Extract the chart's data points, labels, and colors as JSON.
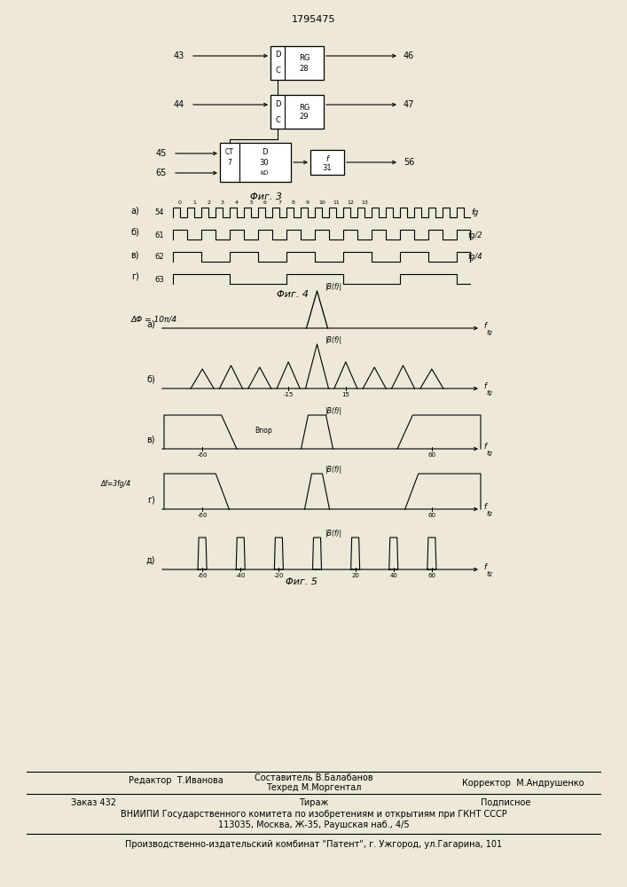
{
  "title": "1795475",
  "bg_color": "#ede8d8",
  "fig3_label": "Φиг. 3",
  "fig4_label": "Φиг. 4",
  "fig5_label": "Φиг. 5"
}
